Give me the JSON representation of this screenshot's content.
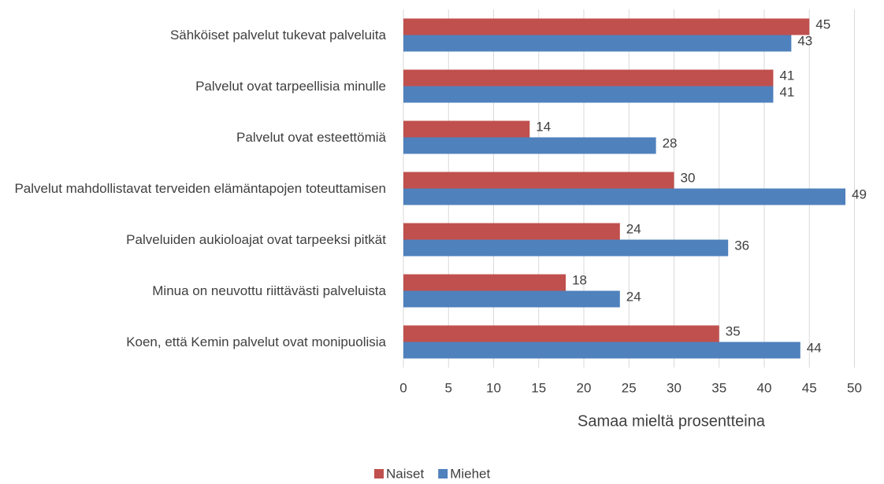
{
  "chart_data": {
    "type": "bar",
    "orientation": "horizontal",
    "categories": [
      "Sähköiset palvelut tukevat palveluita",
      "Palvelut ovat tarpeellisia minulle",
      "Palvelut ovat esteettömiä",
      "Palvelut mahdollistavat terveiden elämäntapojen toteuttamisen",
      "Palveluiden aukioloajat ovat tarpeeksi pitkät",
      "Minua on neuvottu riittävästi palveluista",
      "Koen, että Kemin palvelut ovat monipuolisia"
    ],
    "series": [
      {
        "name": "Naiset",
        "color": "#c0504d",
        "values": [
          45,
          41,
          14,
          30,
          24,
          18,
          35
        ]
      },
      {
        "name": "Miehet",
        "color": "#4f81bd",
        "values": [
          43,
          41,
          28,
          49,
          36,
          24,
          44
        ]
      }
    ],
    "xlabel": "Samaa mieltä prosentteina",
    "xlim": [
      0,
      50
    ],
    "xticks": [
      0,
      5,
      10,
      15,
      20,
      25,
      30,
      35,
      40,
      45,
      50
    ],
    "grid": true,
    "legend": "bottom"
  }
}
